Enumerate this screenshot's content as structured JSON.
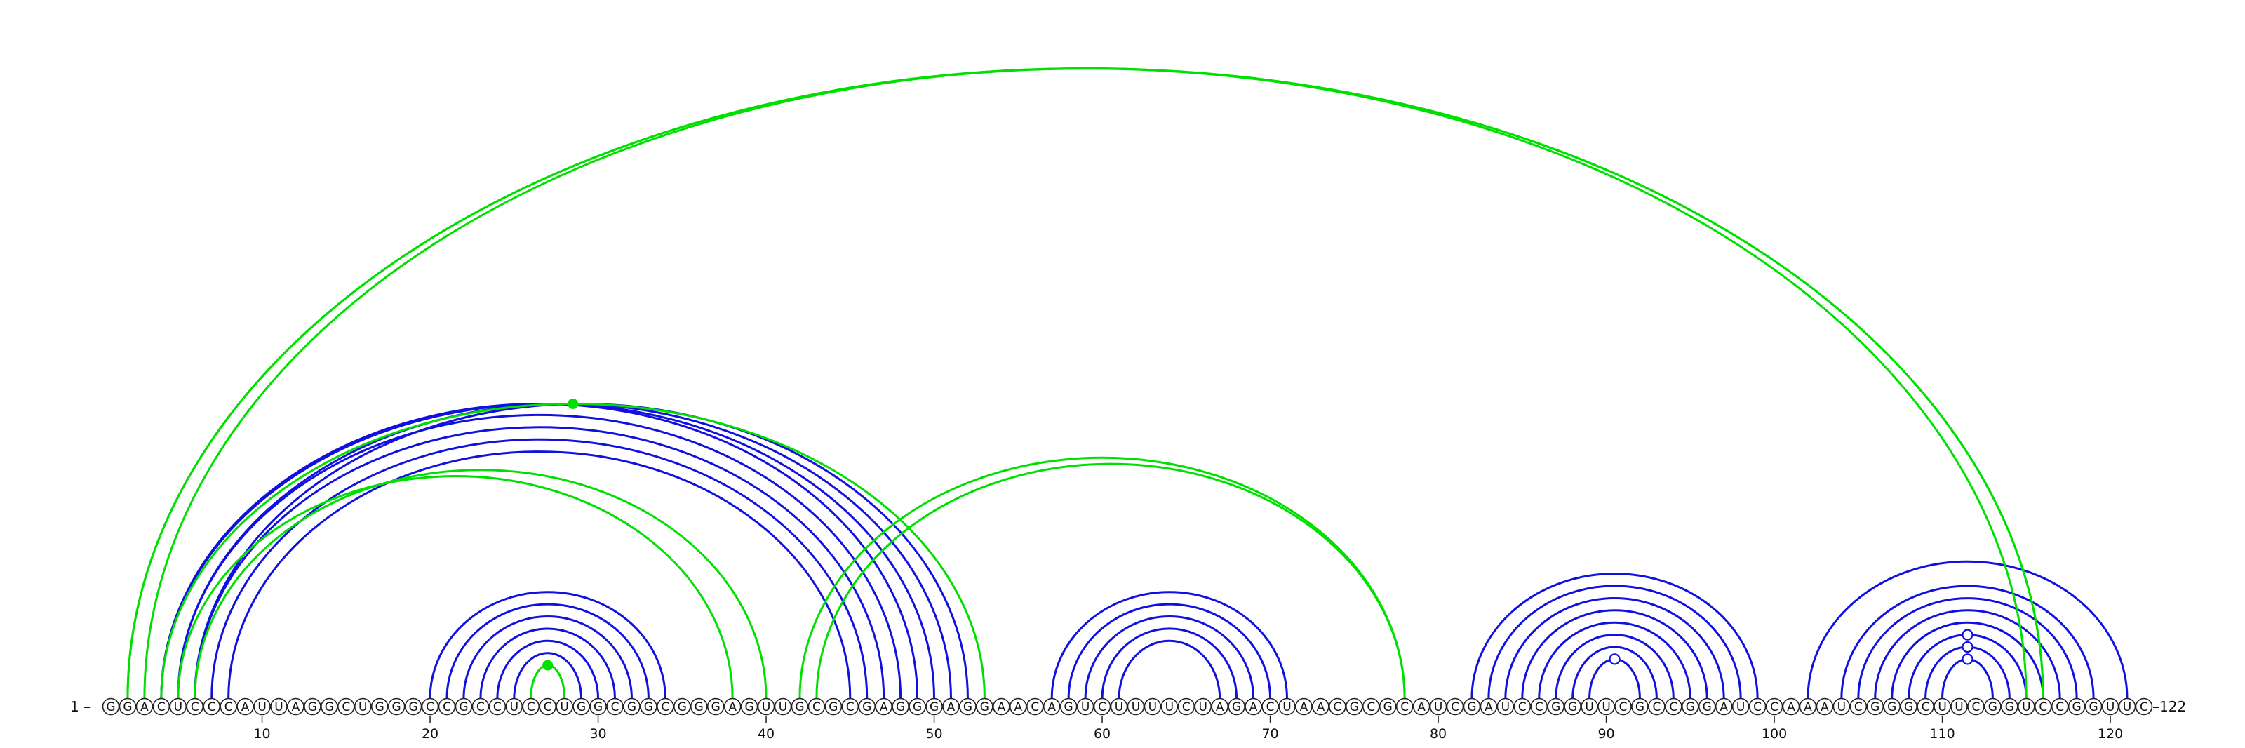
{
  "sequence": "GGACUCCCAUUAGGCUGGGCCGCCUCCUGGCGGCGGGAGUUGCGCGAGGGAGGAACAGUCUUUUCUAGACUAACGCGCAUCGAUCCGGUUCGCCGGAUCCAAAUCGGGCUUCGGUCCGGUUC",
  "labels": {
    "start": "1 –",
    "end": "–122"
  },
  "ticks": [
    10,
    20,
    30,
    40,
    50,
    60,
    70,
    80,
    90,
    100,
    110,
    120
  ],
  "colors": {
    "canonical_arc": "#1010e0",
    "noncanonical_arc": "#00e000",
    "marker_open": "#1010e0",
    "marker_filled": "#00e000"
  },
  "arcs": {
    "blue": [
      [
        4,
        49
      ],
      [
        5,
        48
      ],
      [
        6,
        47
      ],
      [
        7,
        46
      ],
      [
        8,
        45
      ],
      [
        4,
        50
      ],
      [
        5,
        51
      ],
      [
        6,
        52
      ],
      [
        20,
        34
      ],
      [
        21,
        33
      ],
      [
        22,
        32
      ],
      [
        23,
        31
      ],
      [
        24,
        30
      ],
      [
        25,
        29
      ],
      [
        57,
        71
      ],
      [
        58,
        70
      ],
      [
        59,
        69
      ],
      [
        60,
        68
      ],
      [
        61,
        67
      ],
      [
        82,
        99
      ],
      [
        83,
        98
      ],
      [
        84,
        97
      ],
      [
        85,
        96
      ],
      [
        86,
        95
      ],
      [
        87,
        94
      ],
      [
        88,
        93
      ],
      [
        89,
        92
      ],
      [
        102,
        121
      ],
      [
        104,
        119
      ],
      [
        105,
        118
      ],
      [
        106,
        117
      ],
      [
        107,
        116
      ],
      [
        108,
        115
      ],
      [
        109,
        114
      ],
      [
        110,
        113
      ]
    ],
    "green": [
      [
        2,
        116
      ],
      [
        3,
        115
      ],
      [
        4,
        53
      ],
      [
        5,
        38
      ],
      [
        6,
        40
      ],
      [
        42,
        78
      ],
      [
        43,
        78
      ],
      [
        26,
        28
      ],
      [
        2,
        116
      ]
    ]
  },
  "markers": {
    "open": [
      [
        89,
        92
      ],
      [
        110,
        113
      ],
      [
        109,
        114
      ],
      [
        108,
        115
      ]
    ],
    "filled": [
      [
        4,
        53
      ],
      [
        26,
        28
      ]
    ]
  }
}
